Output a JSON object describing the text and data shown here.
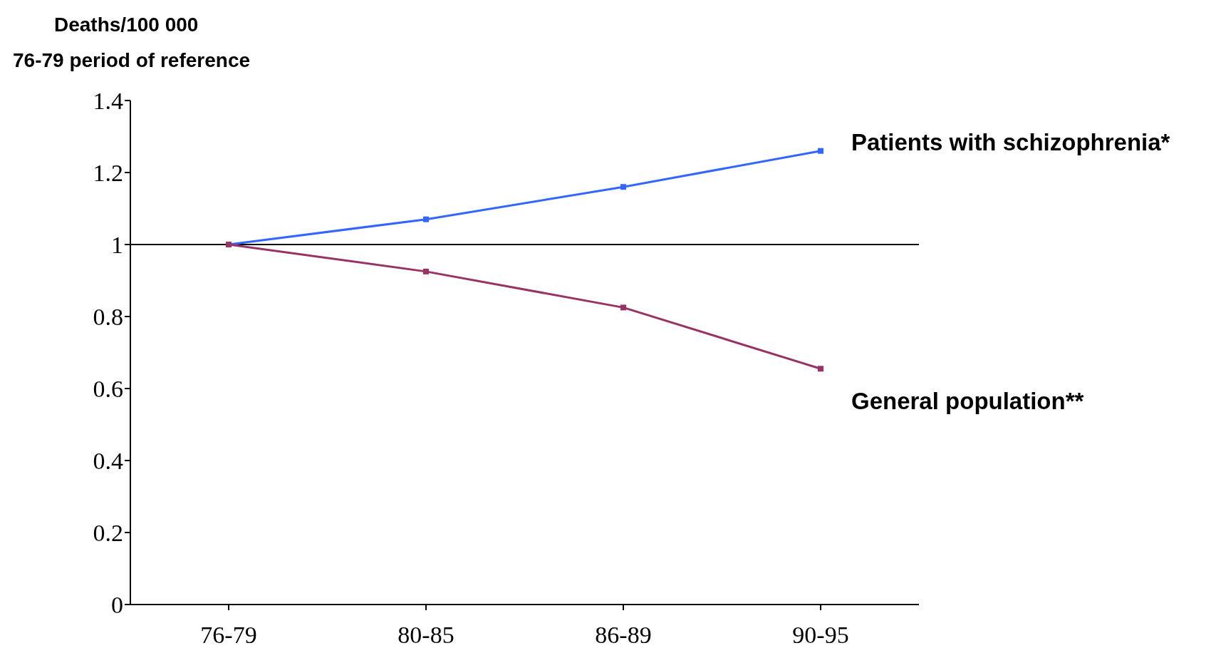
{
  "chart_data": {
    "type": "line",
    "title": "Deaths/100 000",
    "subtitle": "76-79 period of reference",
    "categories": [
      "76-79",
      "80-85",
      "86-89",
      "90-95"
    ],
    "series": [
      {
        "name": "Patients with schizophrenia*",
        "color": "#3366ff",
        "values": [
          1.0,
          1.07,
          1.16,
          1.26
        ]
      },
      {
        "name": "General population**",
        "color": "#993366",
        "values": [
          1.0,
          0.925,
          0.825,
          0.655
        ]
      }
    ],
    "ylim": [
      0,
      1.4
    ],
    "yticks": [
      0,
      0.2,
      0.4,
      0.6,
      0.8,
      1,
      1.2,
      1.4
    ],
    "ref_lines": [
      {
        "axis": "y",
        "value": 1,
        "color": "#000000"
      }
    ],
    "marker": "square",
    "line_style": "solid",
    "grid": false,
    "legend": false
  }
}
